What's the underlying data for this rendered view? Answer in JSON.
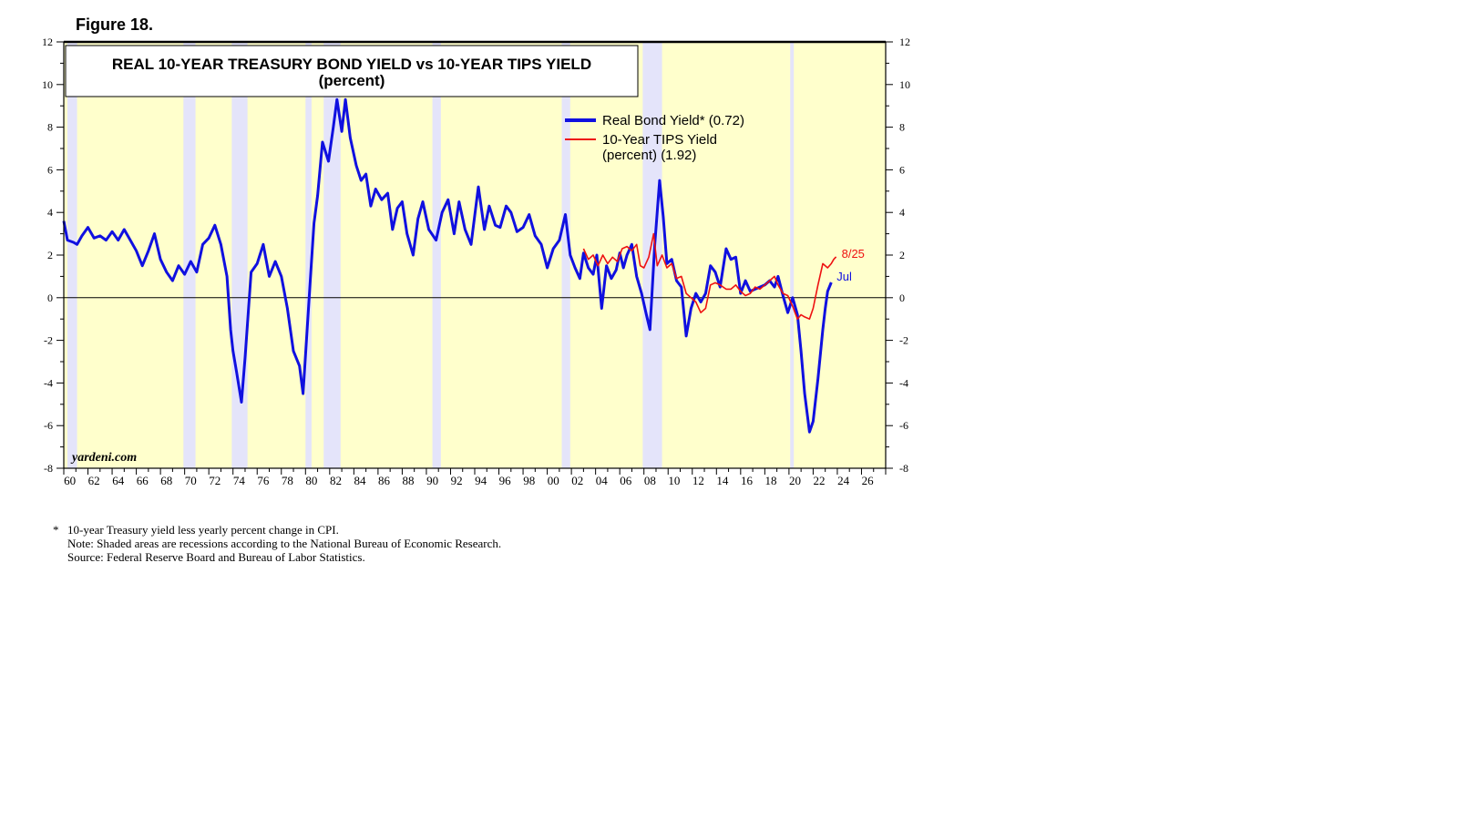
{
  "figure_label": "Figure 18.",
  "chart_data": {
    "type": "line",
    "title": "REAL 10-YEAR TREASURY BOND YIELD vs 10-YEAR TIPS YIELD",
    "subtitle": "(percent)",
    "xlabel": "",
    "ylabel": "",
    "xlim": [
      1960,
      2028
    ],
    "ylim": [
      -8,
      12
    ],
    "y_ticks": [
      -8,
      -6,
      -4,
      -2,
      0,
      2,
      4,
      6,
      8,
      10,
      12
    ],
    "x_tick_labels": [
      "60",
      "62",
      "64",
      "66",
      "68",
      "70",
      "72",
      "74",
      "76",
      "78",
      "80",
      "82",
      "84",
      "86",
      "88",
      "90",
      "92",
      "94",
      "96",
      "98",
      "00",
      "02",
      "04",
      "06",
      "08",
      "10",
      "12",
      "14",
      "16",
      "18",
      "20",
      "22",
      "24",
      "26"
    ],
    "x_tick_years": [
      1960,
      1962,
      1964,
      1966,
      1968,
      1970,
      1972,
      1974,
      1976,
      1978,
      1980,
      1982,
      1984,
      1986,
      1988,
      1990,
      1992,
      1994,
      1996,
      1998,
      2000,
      2002,
      2004,
      2006,
      2008,
      2010,
      2012,
      2014,
      2016,
      2018,
      2020,
      2022,
      2024,
      2026
    ],
    "recessions": [
      [
        1960.3,
        1961.1
      ],
      [
        1969.9,
        1970.9
      ],
      [
        1973.9,
        1975.2
      ],
      [
        1980.0,
        1980.5
      ],
      [
        1981.5,
        1982.9
      ],
      [
        1990.5,
        1991.2
      ],
      [
        2001.2,
        2001.9
      ],
      [
        2007.9,
        2009.5
      ],
      [
        2020.1,
        2020.4
      ]
    ],
    "series": [
      {
        "name": "Real Bond Yield* (0.72)",
        "color": "#1010e0",
        "end_label": "Jul",
        "points": [
          [
            1960.0,
            3.6
          ],
          [
            1960.3,
            2.7
          ],
          [
            1960.8,
            2.6
          ],
          [
            1961.1,
            2.5
          ],
          [
            1961.5,
            2.9
          ],
          [
            1962.0,
            3.3
          ],
          [
            1962.5,
            2.8
          ],
          [
            1963.0,
            2.9
          ],
          [
            1963.5,
            2.7
          ],
          [
            1964.0,
            3.1
          ],
          [
            1964.5,
            2.7
          ],
          [
            1965.0,
            3.2
          ],
          [
            1965.5,
            2.7
          ],
          [
            1966.0,
            2.2
          ],
          [
            1966.5,
            1.5
          ],
          [
            1967.0,
            2.2
          ],
          [
            1967.5,
            3.0
          ],
          [
            1968.0,
            1.8
          ],
          [
            1968.5,
            1.2
          ],
          [
            1969.0,
            0.8
          ],
          [
            1969.5,
            1.5
          ],
          [
            1970.0,
            1.1
          ],
          [
            1970.5,
            1.7
          ],
          [
            1971.0,
            1.2
          ],
          [
            1971.5,
            2.5
          ],
          [
            1972.0,
            2.8
          ],
          [
            1972.5,
            3.4
          ],
          [
            1973.0,
            2.5
          ],
          [
            1973.5,
            1.0
          ],
          [
            1973.8,
            -1.5
          ],
          [
            1974.0,
            -2.5
          ],
          [
            1974.3,
            -3.5
          ],
          [
            1974.7,
            -4.9
          ],
          [
            1975.0,
            -2.8
          ],
          [
            1975.5,
            1.2
          ],
          [
            1976.0,
            1.6
          ],
          [
            1976.5,
            2.5
          ],
          [
            1977.0,
            1.0
          ],
          [
            1977.5,
            1.7
          ],
          [
            1978.0,
            1.0
          ],
          [
            1978.5,
            -0.5
          ],
          [
            1979.0,
            -2.5
          ],
          [
            1979.5,
            -3.2
          ],
          [
            1979.8,
            -4.5
          ],
          [
            1980.3,
            0.0
          ],
          [
            1980.7,
            3.5
          ],
          [
            1981.0,
            4.8
          ],
          [
            1981.4,
            7.3
          ],
          [
            1981.9,
            6.4
          ],
          [
            1982.3,
            8.0
          ],
          [
            1982.6,
            9.3
          ],
          [
            1983.0,
            7.8
          ],
          [
            1983.3,
            9.3
          ],
          [
            1983.7,
            7.5
          ],
          [
            1984.2,
            6.2
          ],
          [
            1984.6,
            5.5
          ],
          [
            1985.0,
            5.8
          ],
          [
            1985.4,
            4.3
          ],
          [
            1985.8,
            5.1
          ],
          [
            1986.3,
            4.6
          ],
          [
            1986.8,
            4.9
          ],
          [
            1987.2,
            3.2
          ],
          [
            1987.6,
            4.2
          ],
          [
            1988.0,
            4.5
          ],
          [
            1988.4,
            3.0
          ],
          [
            1988.9,
            2.0
          ],
          [
            1989.3,
            3.7
          ],
          [
            1989.7,
            4.5
          ],
          [
            1990.2,
            3.2
          ],
          [
            1990.8,
            2.7
          ],
          [
            1991.3,
            4.0
          ],
          [
            1991.8,
            4.6
          ],
          [
            1992.3,
            3.0
          ],
          [
            1992.7,
            4.5
          ],
          [
            1993.2,
            3.2
          ],
          [
            1993.7,
            2.5
          ],
          [
            1994.3,
            5.2
          ],
          [
            1994.8,
            3.2
          ],
          [
            1995.2,
            4.3
          ],
          [
            1995.7,
            3.4
          ],
          [
            1996.1,
            3.3
          ],
          [
            1996.6,
            4.3
          ],
          [
            1997.0,
            4.0
          ],
          [
            1997.5,
            3.1
          ],
          [
            1998.0,
            3.3
          ],
          [
            1998.5,
            3.9
          ],
          [
            1999.0,
            2.9
          ],
          [
            1999.5,
            2.5
          ],
          [
            2000.0,
            1.4
          ],
          [
            2000.5,
            2.3
          ],
          [
            2001.0,
            2.7
          ],
          [
            2001.5,
            3.9
          ],
          [
            2001.9,
            2.0
          ],
          [
            2002.3,
            1.4
          ],
          [
            2002.7,
            0.9
          ],
          [
            2003.0,
            2.1
          ],
          [
            2003.4,
            1.4
          ],
          [
            2003.8,
            1.1
          ],
          [
            2004.1,
            2.0
          ],
          [
            2004.5,
            -0.5
          ],
          [
            2004.9,
            1.5
          ],
          [
            2005.3,
            0.9
          ],
          [
            2005.7,
            1.3
          ],
          [
            2006.0,
            2.1
          ],
          [
            2006.3,
            1.4
          ],
          [
            2006.6,
            2.0
          ],
          [
            2007.0,
            2.5
          ],
          [
            2007.4,
            1.0
          ],
          [
            2007.8,
            0.2
          ],
          [
            2008.2,
            -0.8
          ],
          [
            2008.5,
            -1.5
          ],
          [
            2008.9,
            2.5
          ],
          [
            2009.3,
            5.5
          ],
          [
            2009.6,
            3.8
          ],
          [
            2009.9,
            1.6
          ],
          [
            2010.3,
            1.8
          ],
          [
            2010.7,
            0.8
          ],
          [
            2011.1,
            0.5
          ],
          [
            2011.5,
            -1.8
          ],
          [
            2011.9,
            -0.5
          ],
          [
            2012.3,
            0.2
          ],
          [
            2012.7,
            -0.2
          ],
          [
            2013.1,
            0.2
          ],
          [
            2013.5,
            1.5
          ],
          [
            2013.9,
            1.2
          ],
          [
            2014.3,
            0.5
          ],
          [
            2014.8,
            2.3
          ],
          [
            2015.2,
            1.8
          ],
          [
            2015.6,
            1.9
          ],
          [
            2016.0,
            0.2
          ],
          [
            2016.4,
            0.8
          ],
          [
            2016.8,
            0.3
          ],
          [
            2017.2,
            0.4
          ],
          [
            2017.6,
            0.5
          ],
          [
            2018.0,
            0.6
          ],
          [
            2018.4,
            0.8
          ],
          [
            2018.8,
            0.5
          ],
          [
            2019.1,
            1.0
          ],
          [
            2019.5,
            0.1
          ],
          [
            2019.9,
            -0.7
          ],
          [
            2020.3,
            0.0
          ],
          [
            2020.7,
            -0.8
          ],
          [
            2021.0,
            -2.5
          ],
          [
            2021.3,
            -4.5
          ],
          [
            2021.7,
            -6.3
          ],
          [
            2022.0,
            -5.8
          ],
          [
            2022.4,
            -3.8
          ],
          [
            2022.8,
            -1.5
          ],
          [
            2023.0,
            -0.5
          ],
          [
            2023.2,
            0.3
          ],
          [
            2023.5,
            0.72
          ]
        ]
      },
      {
        "name": "10-Year TIPS Yield",
        "name_line2": "(percent) (1.92)",
        "color": "#ee1111",
        "end_label": "8/25",
        "points": [
          [
            2003.0,
            2.3
          ],
          [
            2003.4,
            1.8
          ],
          [
            2003.8,
            2.0
          ],
          [
            2004.2,
            1.5
          ],
          [
            2004.6,
            2.0
          ],
          [
            2005.0,
            1.6
          ],
          [
            2005.4,
            1.9
          ],
          [
            2005.8,
            1.7
          ],
          [
            2006.2,
            2.3
          ],
          [
            2006.6,
            2.4
          ],
          [
            2007.0,
            2.2
          ],
          [
            2007.4,
            2.5
          ],
          [
            2007.7,
            1.5
          ],
          [
            2008.0,
            1.4
          ],
          [
            2008.4,
            1.9
          ],
          [
            2008.8,
            3.0
          ],
          [
            2009.1,
            1.5
          ],
          [
            2009.5,
            2.0
          ],
          [
            2009.9,
            1.4
          ],
          [
            2010.3,
            1.6
          ],
          [
            2010.7,
            0.9
          ],
          [
            2011.1,
            1.0
          ],
          [
            2011.5,
            0.2
          ],
          [
            2011.9,
            0.0
          ],
          [
            2012.3,
            -0.2
          ],
          [
            2012.7,
            -0.7
          ],
          [
            2013.1,
            -0.5
          ],
          [
            2013.5,
            0.6
          ],
          [
            2013.9,
            0.7
          ],
          [
            2014.3,
            0.6
          ],
          [
            2014.8,
            0.4
          ],
          [
            2015.2,
            0.4
          ],
          [
            2015.6,
            0.6
          ],
          [
            2016.0,
            0.3
          ],
          [
            2016.4,
            0.1
          ],
          [
            2016.8,
            0.2
          ],
          [
            2017.2,
            0.5
          ],
          [
            2017.6,
            0.4
          ],
          [
            2018.0,
            0.6
          ],
          [
            2018.4,
            0.8
          ],
          [
            2018.8,
            1.0
          ],
          [
            2019.1,
            0.6
          ],
          [
            2019.5,
            0.2
          ],
          [
            2019.9,
            0.1
          ],
          [
            2020.3,
            -0.4
          ],
          [
            2020.7,
            -1.0
          ],
          [
            2021.0,
            -0.8
          ],
          [
            2021.3,
            -0.9
          ],
          [
            2021.7,
            -1.0
          ],
          [
            2022.0,
            -0.5
          ],
          [
            2022.4,
            0.6
          ],
          [
            2022.8,
            1.6
          ],
          [
            2023.2,
            1.4
          ],
          [
            2023.5,
            1.6
          ],
          [
            2023.7,
            1.8
          ],
          [
            2023.9,
            1.92
          ]
        ]
      }
    ],
    "watermark": "yardeni.com"
  },
  "footnotes": {
    "star": "*",
    "line1": "10-year Treasury yield less yearly percent change in  CPI.",
    "line2": "Note: Shaded areas are recessions according to the National Bureau of Economic Research.",
    "line3": "Source: Federal Reserve Board and Bureau of Labor Statistics."
  },
  "colors": {
    "plot_bg": "#ffffcc",
    "recession": "#e4e4fa"
  }
}
